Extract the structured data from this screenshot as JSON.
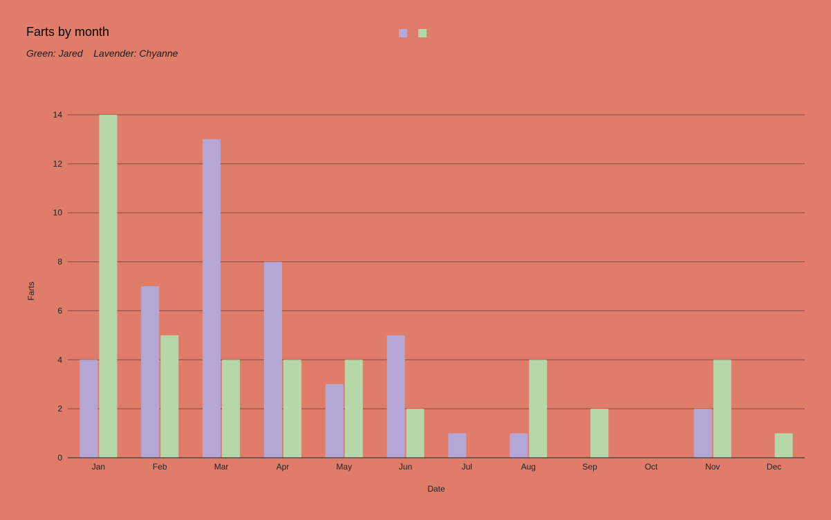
{
  "chart_data": {
    "type": "bar",
    "title": "Farts by month",
    "subtitle": "Green: Jared    Lavender: Chyanne",
    "xlabel": "Date",
    "ylabel": "Farts",
    "categories": [
      "Jan",
      "Feb",
      "Mar",
      "Apr",
      "May",
      "Jun",
      "Jul",
      "Aug",
      "Sep",
      "Oct",
      "Nov",
      "Dec"
    ],
    "series": [
      {
        "color": "#b4a7d6",
        "values": [
          4,
          7,
          13,
          8,
          3,
          5,
          1,
          1,
          0,
          0,
          2,
          0
        ]
      },
      {
        "color": "#b6d7a8",
        "values": [
          14,
          5,
          4,
          4,
          4,
          2,
          0,
          4,
          2,
          0,
          4,
          1
        ]
      }
    ],
    "ylim": [
      0,
      14
    ],
    "yticks": [
      0,
      2,
      4,
      6,
      8,
      10,
      12,
      14
    ],
    "grid": true,
    "legend_position": "top-center",
    "background_color": "#df7d6a"
  }
}
